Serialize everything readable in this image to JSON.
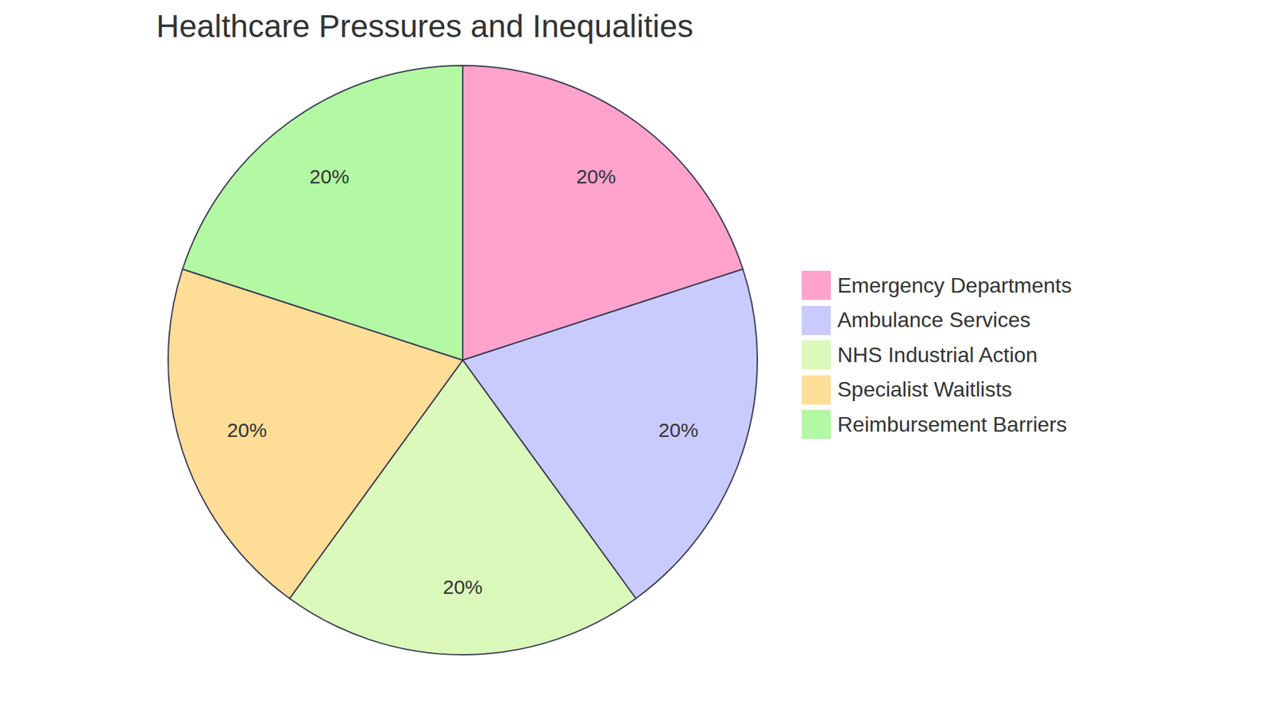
{
  "chart_data": {
    "type": "pie",
    "title": "Healthcare Pressures and Inequalities",
    "categories": [
      "Emergency Departments",
      "Ambulance Services",
      "NHS Industrial Action",
      "Specialist Waitlists",
      "Reimbursement Barriers"
    ],
    "values": [
      20,
      20,
      20,
      20,
      20
    ],
    "value_labels": [
      "20%",
      "20%",
      "20%",
      "20%",
      "20%"
    ],
    "colors": [
      "#ffa3cc",
      "#c9cbff",
      "#daf9ba",
      "#fedd97",
      "#b3f8a3"
    ],
    "data_labels": true,
    "legend": "right"
  }
}
